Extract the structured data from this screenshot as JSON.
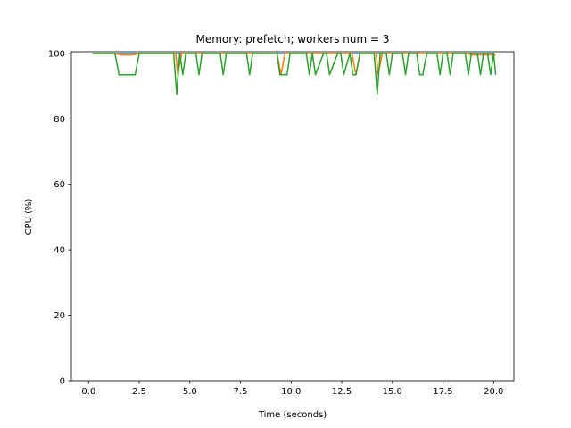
{
  "chart_data": {
    "type": "line",
    "title": "Memory: prefetch; workers num = 3",
    "xlabel": "Time (seconds)",
    "ylabel": "CPU (%)",
    "xlim": [
      -0.85,
      21.0
    ],
    "ylim": [
      0,
      100.5
    ],
    "xticks": [
      0.0,
      2.5,
      5.0,
      7.5,
      10.0,
      12.5,
      15.0,
      17.5,
      20.0
    ],
    "xtick_labels": [
      "0.0",
      "2.5",
      "5.0",
      "7.5",
      "10.0",
      "12.5",
      "15.0",
      "17.5",
      "20.0"
    ],
    "yticks": [
      0,
      20,
      40,
      60,
      80,
      100
    ],
    "ytick_labels": [
      "0",
      "20",
      "40",
      "60",
      "80",
      "100"
    ],
    "grid": false,
    "legend": null,
    "series": [
      {
        "color": "#1f77b4",
        "x": [
          0.2,
          20.0
        ],
        "y": [
          100,
          100
        ]
      },
      {
        "color": "#ff7f0e",
        "x": [
          0.2,
          1.3,
          1.6,
          2.2,
          2.5,
          4.3,
          4.4,
          4.6,
          9.3,
          9.5,
          9.7,
          13.0,
          13.2,
          13.4,
          14.2,
          14.3,
          14.5,
          18.7,
          18.9,
          20.0,
          20.1
        ],
        "y": [
          100,
          100,
          99.5,
          99.5,
          100,
          100,
          93.5,
          100,
          100,
          93.5,
          100,
          100,
          93.5,
          100,
          100,
          93.5,
          100,
          100,
          99.5,
          99.5,
          99.5
        ]
      },
      {
        "color": "#2ca02c",
        "x": [
          0.2,
          1.3,
          1.5,
          2.3,
          2.5,
          2.6,
          2.8,
          4.2,
          4.35,
          4.5,
          4.65,
          4.8,
          5.3,
          5.45,
          5.6,
          6.5,
          6.65,
          6.8,
          7.8,
          7.95,
          8.1,
          9.3,
          9.45,
          9.8,
          9.95,
          10.6,
          10.75,
          10.9,
          11.05,
          11.2,
          11.6,
          11.75,
          11.9,
          12.3,
          12.45,
          12.6,
          12.9,
          13.05,
          13.2,
          13.4,
          13.55,
          13.7,
          14.1,
          14.25,
          14.4,
          14.7,
          14.85,
          15.0,
          15.5,
          15.65,
          15.8,
          16.2,
          16.35,
          16.5,
          16.7,
          16.85,
          17.0,
          17.2,
          17.35,
          17.5,
          17.7,
          17.85,
          18.0,
          18.6,
          18.75,
          18.9,
          19.2,
          19.35,
          19.5,
          19.7,
          19.85,
          20.0,
          20.1
        ],
        "y": [
          100,
          100,
          93.5,
          93.5,
          100,
          100,
          100,
          100,
          87.5,
          100,
          93.5,
          100,
          100,
          93.5,
          100,
          100,
          93.5,
          100,
          100,
          93.5,
          100,
          100,
          93.5,
          93.5,
          100,
          100,
          100,
          93.5,
          100,
          93.5,
          100,
          100,
          93.5,
          100,
          100,
          93.5,
          100,
          93.5,
          93.5,
          100,
          100,
          100,
          100,
          87.5,
          100,
          100,
          93.5,
          100,
          100,
          93.5,
          100,
          100,
          93.5,
          93.5,
          100,
          100,
          100,
          100,
          93.5,
          100,
          100,
          93.5,
          100,
          100,
          93.5,
          100,
          100,
          93.5,
          100,
          100,
          93.5,
          100,
          93.5
        ]
      }
    ]
  }
}
